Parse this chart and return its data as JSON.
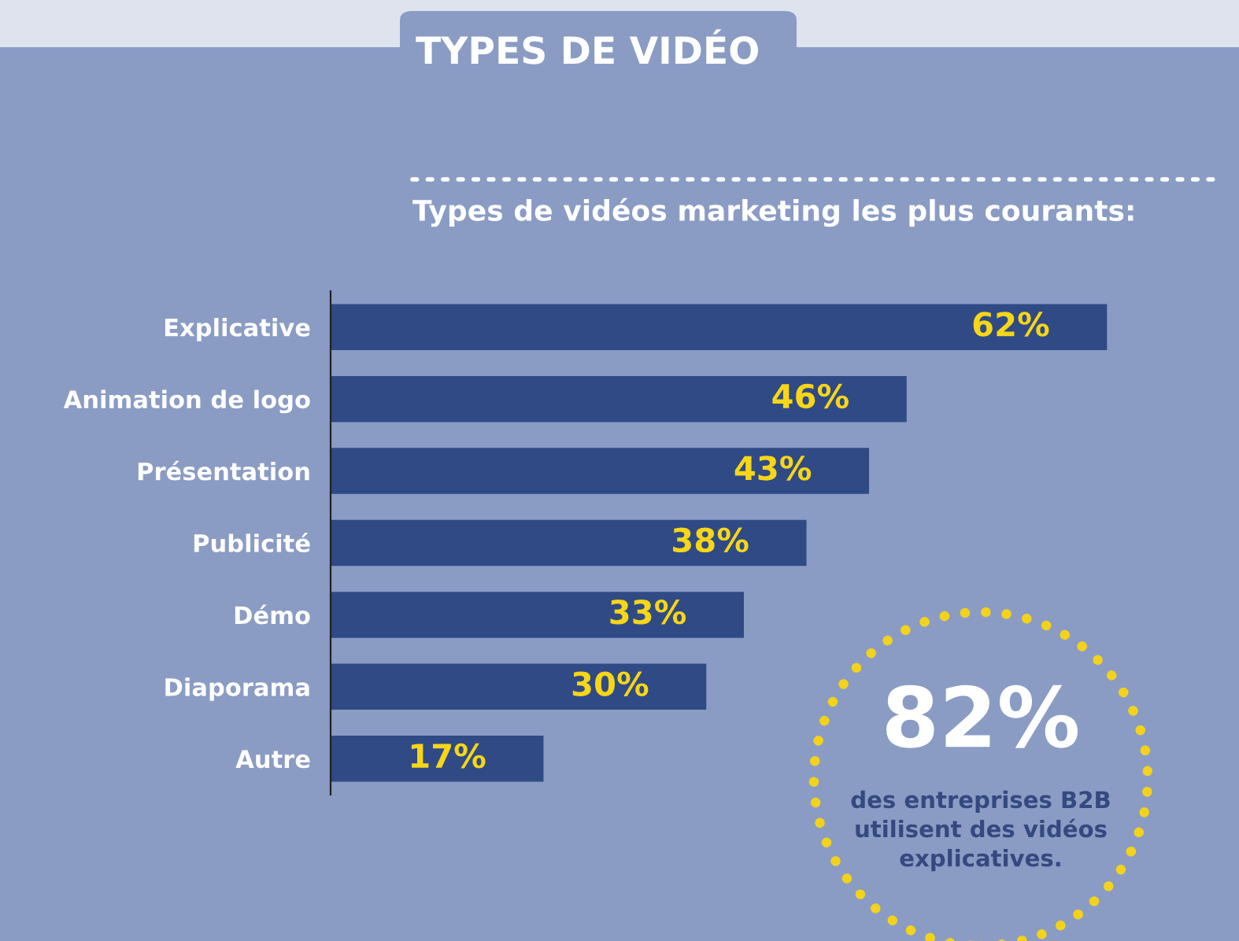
{
  "chart_data": {
    "type": "bar",
    "orientation": "horizontal",
    "title": "TYPES DE VIDÉO",
    "subtitle": "Types de vidéos marketing les plus courants:",
    "categories": [
      "Explicative",
      "Animation de logo",
      "Présentation",
      "Publicité",
      "Démo",
      "Diaporama",
      "Autre"
    ],
    "values": [
      62,
      46,
      43,
      38,
      33,
      30,
      17
    ],
    "color": "#2f4a85",
    "value_labels": [
      "62%",
      "46%",
      "43%",
      "38%",
      "33%",
      "30%",
      "17%"
    ],
    "grid": false,
    "legend": false,
    "annotations": [
      "82%",
      "des entreprises B2B\nutilisent des vidéos\nexplicatives."
    ]
  }
}
